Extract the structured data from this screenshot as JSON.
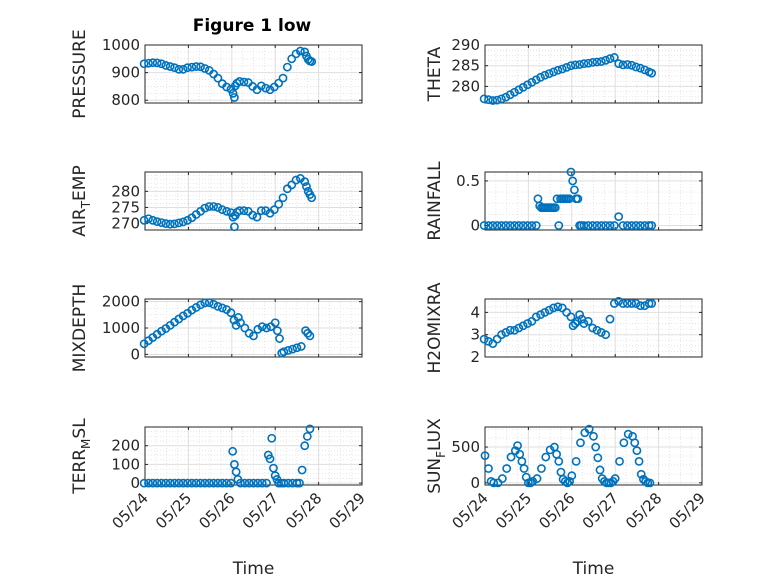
{
  "figure": {
    "title": "Figure 1 low"
  },
  "style": {
    "marker_color": "#0072bd",
    "axis_color": "#262626",
    "grid_color": "#dfdfdf"
  },
  "chart_data": [
    {
      "type": "scatter",
      "title": "Figure 1 low",
      "ylabel": "PRESSURE",
      "xlabel": "",
      "xlim": [
        "05/24",
        "05/29"
      ],
      "ylim": [
        790,
        1000
      ],
      "yticks": [
        800,
        900,
        1000
      ],
      "xticks": [
        "05/24",
        "05/25",
        "05/26",
        "05/27",
        "05/28",
        "05/29"
      ],
      "show_xticklabels": false,
      "grid": true,
      "minor_grid": true,
      "x": [
        23.98,
        24.08,
        24.18,
        24.28,
        24.38,
        24.48,
        24.58,
        24.68,
        24.78,
        24.88,
        24.98,
        25.08,
        25.18,
        25.28,
        25.38,
        25.48,
        25.58,
        25.68,
        25.78,
        25.88,
        25.98,
        26.03,
        26.06,
        26.08,
        26.12,
        26.18,
        26.28,
        26.38,
        26.48,
        26.58,
        26.68,
        26.78,
        26.88,
        26.98,
        27.08,
        27.18,
        27.28,
        27.38,
        27.48,
        27.58,
        27.68,
        27.72,
        27.76,
        27.8,
        27.84
      ],
      "y": [
        932,
        934,
        936,
        935,
        932,
        926,
        922,
        918,
        912,
        912,
        918,
        920,
        922,
        921,
        915,
        908,
        895,
        880,
        860,
        848,
        840,
        825,
        810,
        852,
        862,
        868,
        866,
        864,
        850,
        838,
        852,
        844,
        838,
        848,
        862,
        880,
        920,
        950,
        968,
        978,
        975,
        960,
        948,
        942,
        940
      ]
    },
    {
      "type": "scatter",
      "title": "",
      "ylabel": "THETA",
      "xlabel": "",
      "xlim": [
        "05/24",
        "05/29"
      ],
      "ylim": [
        276,
        290
      ],
      "yticks": [
        280,
        285,
        290
      ],
      "xticks": [
        "05/24",
        "05/25",
        "05/26",
        "05/27",
        "05/28",
        "05/29"
      ],
      "show_xticklabels": false,
      "grid": true,
      "minor_grid": true,
      "x": [
        23.98,
        24.08,
        24.18,
        24.28,
        24.38,
        24.48,
        24.58,
        24.68,
        24.78,
        24.88,
        24.98,
        25.08,
        25.18,
        25.28,
        25.38,
        25.48,
        25.58,
        25.68,
        25.78,
        25.88,
        25.98,
        26.08,
        26.18,
        26.28,
        26.38,
        26.48,
        26.58,
        26.68,
        26.78,
        26.88,
        26.98,
        27.08,
        27.18,
        27.28,
        27.38,
        27.48,
        27.58,
        27.68,
        27.78,
        27.84
      ],
      "y": [
        277,
        276.8,
        276.6,
        276.7,
        277,
        277.4,
        278,
        278.6,
        279.2,
        279.8,
        280.4,
        281,
        281.6,
        282.2,
        282.7,
        283.1,
        283.5,
        283.9,
        284.2,
        284.6,
        285,
        285.2,
        285.3,
        285.5,
        285.6,
        285.8,
        285.9,
        286,
        286.3,
        286.7,
        287,
        285.5,
        285.2,
        285.3,
        285.1,
        284.7,
        284.4,
        284,
        283.5,
        283.2
      ]
    },
    {
      "type": "scatter",
      "title": "",
      "ylabel": "AIR_TEMP",
      "xlabel": "",
      "xlim": [
        "05/24",
        "05/29"
      ],
      "ylim": [
        268,
        286
      ],
      "yticks": [
        270,
        275,
        280
      ],
      "xticks": [
        "05/24",
        "05/25",
        "05/26",
        "05/27",
        "05/28",
        "05/29"
      ],
      "show_xticklabels": false,
      "grid": true,
      "minor_grid": true,
      "x": [
        23.98,
        24.08,
        24.18,
        24.28,
        24.38,
        24.48,
        24.58,
        24.68,
        24.78,
        24.88,
        24.98,
        25.08,
        25.18,
        25.28,
        25.38,
        25.48,
        25.58,
        25.68,
        25.78,
        25.88,
        25.98,
        26.03,
        26.06,
        26.08,
        26.12,
        26.18,
        26.28,
        26.38,
        26.48,
        26.58,
        26.68,
        26.78,
        26.88,
        26.98,
        27.08,
        27.18,
        27.28,
        27.38,
        27.48,
        27.58,
        27.68,
        27.72,
        27.76,
        27.8,
        27.84
      ],
      "y": [
        271,
        271.5,
        271,
        270.6,
        270.3,
        270,
        269.8,
        269.9,
        270.2,
        270.5,
        271,
        271.8,
        272.8,
        273.8,
        274.8,
        275.3,
        275.3,
        275,
        274.3,
        273.8,
        273.4,
        272,
        269,
        272.5,
        273.5,
        274,
        274,
        273.8,
        272.6,
        272,
        274,
        274,
        273.2,
        274.3,
        276,
        278,
        280.8,
        282,
        283.5,
        284,
        283,
        281.5,
        280,
        279,
        278
      ]
    },
    {
      "type": "scatter",
      "title": "",
      "ylabel": "RAINFALL",
      "xlabel": "",
      "xlim": [
        "05/24",
        "05/29"
      ],
      "ylim": [
        -0.05,
        0.6
      ],
      "yticks": [
        0,
        0.5
      ],
      "xticks": [
        "05/24",
        "05/25",
        "05/26",
        "05/27",
        "05/28",
        "05/29"
      ],
      "show_xticklabels": false,
      "grid": true,
      "minor_grid": true,
      "x": [
        23.98,
        24.08,
        24.18,
        24.28,
        24.38,
        24.48,
        24.58,
        24.68,
        24.78,
        24.88,
        24.98,
        25.08,
        25.18,
        25.22,
        25.26,
        25.3,
        25.34,
        25.38,
        25.42,
        25.46,
        25.5,
        25.54,
        25.58,
        25.62,
        25.66,
        25.7,
        25.74,
        25.78,
        25.82,
        25.86,
        25.9,
        25.94,
        25.98,
        26.02,
        26.06,
        26.1,
        26.14,
        26.18,
        26.22,
        26.28,
        26.38,
        26.48,
        26.58,
        26.68,
        26.78,
        26.88,
        26.98,
        27.08,
        27.18,
        27.28,
        27.38,
        27.48,
        27.58,
        27.68,
        27.78,
        27.84
      ],
      "y": [
        0,
        0,
        0,
        0,
        0,
        0,
        0,
        0,
        0,
        0,
        0,
        0,
        0,
        0.3,
        0.22,
        0.2,
        0.2,
        0.2,
        0.2,
        0.2,
        0.2,
        0.2,
        0.2,
        0.2,
        0.3,
        0,
        0.3,
        0.3,
        0.3,
        0.3,
        0.3,
        0.3,
        0.6,
        0.5,
        0.4,
        0.3,
        0.3,
        0,
        0,
        0,
        0,
        0,
        0,
        0,
        0,
        0,
        0,
        0.1,
        0,
        0,
        0,
        0,
        0,
        0,
        0,
        0
      ]
    },
    {
      "type": "scatter",
      "title": "",
      "ylabel": "MIXDEPTH",
      "xlabel": "",
      "xlim": [
        "05/24",
        "05/29"
      ],
      "ylim": [
        -100,
        2100
      ],
      "yticks": [
        0,
        1000,
        2000
      ],
      "xticks": [
        "05/24",
        "05/25",
        "05/26",
        "05/27",
        "05/28",
        "05/29"
      ],
      "show_xticklabels": false,
      "grid": true,
      "minor_grid": true,
      "x": [
        23.98,
        24.08,
        24.18,
        24.28,
        24.38,
        24.48,
        24.58,
        24.68,
        24.78,
        24.88,
        24.98,
        25.08,
        25.18,
        25.28,
        25.38,
        25.48,
        25.58,
        25.68,
        25.78,
        25.88,
        25.98,
        26.05,
        26.1,
        26.15,
        26.2,
        26.3,
        26.4,
        26.5,
        26.6,
        26.7,
        26.8,
        26.9,
        27.0,
        27.05,
        27.1,
        27.15,
        27.2,
        27.3,
        27.4,
        27.5,
        27.6,
        27.7,
        27.75,
        27.8
      ],
      "y": [
        400,
        520,
        640,
        760,
        880,
        980,
        1100,
        1220,
        1340,
        1460,
        1560,
        1680,
        1780,
        1880,
        1950,
        1960,
        1900,
        1820,
        1760,
        1700,
        1580,
        1300,
        1100,
        1400,
        1200,
        1000,
        800,
        700,
        950,
        1050,
        1000,
        1050,
        1200,
        900,
        600,
        50,
        100,
        150,
        200,
        250,
        300,
        900,
        800,
        700
      ]
    },
    {
      "type": "scatter",
      "title": "",
      "ylabel": "H2OMIXRA",
      "xlabel": "",
      "xlim": [
        "05/24",
        "05/29"
      ],
      "ylim": [
        2,
        4.6
      ],
      "yticks": [
        2,
        3,
        4
      ],
      "xticks": [
        "05/24",
        "05/25",
        "05/26",
        "05/27",
        "05/28",
        "05/29"
      ],
      "show_xticklabels": false,
      "grid": true,
      "minor_grid": true,
      "x": [
        23.98,
        24.08,
        24.18,
        24.28,
        24.38,
        24.48,
        24.58,
        24.68,
        24.78,
        24.88,
        24.98,
        25.08,
        25.18,
        25.28,
        25.38,
        25.48,
        25.58,
        25.68,
        25.78,
        25.88,
        25.98,
        26.03,
        26.08,
        26.13,
        26.18,
        26.23,
        26.28,
        26.38,
        26.48,
        26.58,
        26.68,
        26.78,
        26.88,
        26.98,
        27.08,
        27.18,
        27.28,
        27.38,
        27.48,
        27.58,
        27.68,
        27.78,
        27.84
      ],
      "y": [
        2.8,
        2.7,
        2.6,
        2.8,
        3,
        3.1,
        3.2,
        3.2,
        3.3,
        3.4,
        3.5,
        3.6,
        3.8,
        3.9,
        4,
        4.1,
        4.2,
        4.25,
        4.2,
        4,
        3.8,
        3.4,
        3.5,
        3.6,
        3.9,
        3.7,
        3.5,
        3.6,
        3.3,
        3.2,
        3.1,
        3,
        3.7,
        4.4,
        4.5,
        4.4,
        4.4,
        4.4,
        4.4,
        4.3,
        4.3,
        4.4,
        4.4
      ]
    },
    {
      "type": "scatter",
      "title": "",
      "ylabel": "TERR_MSL",
      "xlabel": "Time",
      "xlim": [
        "05/24",
        "05/29"
      ],
      "ylim": [
        -10,
        300
      ],
      "yticks": [
        0,
        100,
        200
      ],
      "xticks": [
        "05/24",
        "05/25",
        "05/26",
        "05/27",
        "05/28",
        "05/29"
      ],
      "show_xticklabels": true,
      "grid": true,
      "minor_grid": true,
      "x": [
        23.98,
        24.08,
        24.18,
        24.28,
        24.38,
        24.48,
        24.58,
        24.68,
        24.78,
        24.88,
        24.98,
        25.08,
        25.18,
        25.28,
        25.38,
        25.48,
        25.58,
        25.68,
        25.78,
        25.88,
        25.98,
        26.02,
        26.06,
        26.1,
        26.14,
        26.2,
        26.3,
        26.4,
        26.5,
        26.6,
        26.7,
        26.8,
        26.84,
        26.88,
        26.92,
        26.96,
        27.0,
        27.04,
        27.08,
        27.14,
        27.2,
        27.3,
        27.4,
        27.5,
        27.56,
        27.62,
        27.68,
        27.74,
        27.8
      ],
      "y": [
        0,
        0,
        0,
        0,
        0,
        0,
        0,
        0,
        0,
        0,
        0,
        0,
        0,
        0,
        0,
        0,
        0,
        0,
        0,
        0,
        0,
        170,
        100,
        60,
        20,
        0,
        0,
        0,
        0,
        0,
        0,
        0,
        150,
        130,
        240,
        80,
        40,
        20,
        0,
        0,
        0,
        0,
        0,
        0,
        0,
        70,
        200,
        250,
        290
      ]
    },
    {
      "type": "scatter",
      "title": "",
      "ylabel": "SUN_FLUX",
      "xlabel": "Time",
      "xlim": [
        "05/24",
        "05/29"
      ],
      "ylim": [
        -30,
        780
      ],
      "yticks": [
        0,
        500
      ],
      "xticks": [
        "05/24",
        "05/25",
        "05/26",
        "05/27",
        "05/28",
        "05/29"
      ],
      "show_xticklabels": true,
      "grid": true,
      "minor_grid": true,
      "x": [
        24.0,
        24.08,
        24.14,
        24.2,
        24.3,
        24.4,
        24.5,
        24.6,
        24.7,
        24.75,
        24.8,
        24.85,
        24.9,
        24.95,
        25.0,
        25.05,
        25.1,
        25.2,
        25.3,
        25.4,
        25.5,
        25.6,
        25.65,
        25.7,
        25.75,
        25.8,
        25.85,
        25.9,
        25.95,
        26.0,
        26.1,
        26.2,
        26.3,
        26.4,
        26.5,
        26.55,
        26.6,
        26.65,
        26.7,
        26.75,
        26.8,
        26.85,
        26.9,
        26.95,
        27.0,
        27.1,
        27.2,
        27.3,
        27.4,
        27.45,
        27.5,
        27.55,
        27.6,
        27.65,
        27.7,
        27.75,
        27.8
      ],
      "y": [
        380,
        200,
        20,
        0,
        0,
        60,
        200,
        360,
        450,
        520,
        400,
        300,
        200,
        80,
        0,
        0,
        20,
        60,
        200,
        360,
        460,
        500,
        400,
        300,
        150,
        50,
        20,
        0,
        20,
        100,
        300,
        560,
        700,
        750,
        650,
        500,
        350,
        180,
        60,
        20,
        0,
        0,
        0,
        20,
        60,
        300,
        560,
        680,
        650,
        560,
        450,
        300,
        120,
        50,
        20,
        0,
        0
      ]
    }
  ]
}
